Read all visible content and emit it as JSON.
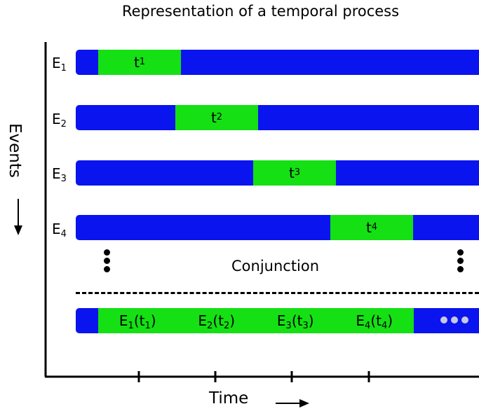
{
  "title": "Representation of a temporal process",
  "y_axis_label": "Events",
  "x_axis_label": "Time",
  "separator_label": "Conjunction",
  "colors": {
    "bar": "#0a14ee",
    "segment": "#14e014",
    "dots": "#c8c8e8"
  },
  "events": [
    {
      "label": "E",
      "sub": "1",
      "segment_label": "t",
      "segment_sub": "1"
    },
    {
      "label": "E",
      "sub": "2",
      "segment_label": "t",
      "segment_sub": "2"
    },
    {
      "label": "E",
      "sub": "3",
      "segment_label": "t",
      "segment_sub": "3"
    },
    {
      "label": "E",
      "sub": "4",
      "segment_label": "t",
      "segment_sub": "4"
    }
  ],
  "conjunction_terms": [
    {
      "e": "E",
      "e_sub": "1",
      "t": "t",
      "t_sub": "1"
    },
    {
      "e": "E",
      "e_sub": "2",
      "t": "t",
      "t_sub": "2"
    },
    {
      "e": "E",
      "e_sub": "3",
      "t": "t",
      "t_sub": "3"
    },
    {
      "e": "E",
      "e_sub": "4",
      "t": "t",
      "t_sub": "4"
    }
  ],
  "continuation_icon": "ellipsis-icon"
}
